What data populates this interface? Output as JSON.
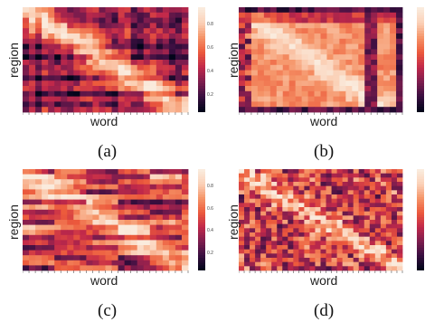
{
  "colors": {
    "scale": [
      "#03051a",
      "#3b0f41",
      "#7f1d4e",
      "#c2294a",
      "#ec5a3c",
      "#f59367",
      "#fbd0b6",
      "#faebdd"
    ]
  },
  "chart_data": [
    {
      "type": "heatmap",
      "panel": "(a)",
      "xlabel": "word",
      "ylabel": "region",
      "rows": 20,
      "cols": 26,
      "pattern": "diagonal",
      "colorbar": {
        "ticks": [
          "0.8",
          "0.6",
          "0.4",
          "0.2"
        ],
        "values": [
          0.8,
          0.6,
          0.4,
          0.2
        ],
        "range": [
          0.05,
          0.95
        ]
      }
    },
    {
      "type": "heatmap",
      "panel": "(b)",
      "xlabel": "word",
      "ylabel": "region",
      "rows": 20,
      "cols": 26,
      "pattern": "block",
      "colorbar": {
        "ticks": [],
        "values": [],
        "range": [
          0.05,
          0.95
        ]
      }
    },
    {
      "type": "heatmap",
      "panel": "(c)",
      "xlabel": "word",
      "ylabel": "region",
      "rows": 20,
      "cols": 26,
      "pattern": "bands",
      "colorbar": {
        "ticks": [
          "0.8",
          "0.6",
          "0.4",
          "0.2"
        ],
        "values": [
          0.8,
          0.6,
          0.4,
          0.2
        ],
        "range": [
          0.05,
          0.95
        ]
      }
    },
    {
      "type": "heatmap",
      "panel": "(d)",
      "xlabel": "word",
      "ylabel": "region",
      "rows": 24,
      "cols": 30,
      "pattern": "noisy-diagonal",
      "colorbar": {
        "ticks": [],
        "values": [],
        "range": [
          0.05,
          0.95
        ]
      }
    }
  ]
}
